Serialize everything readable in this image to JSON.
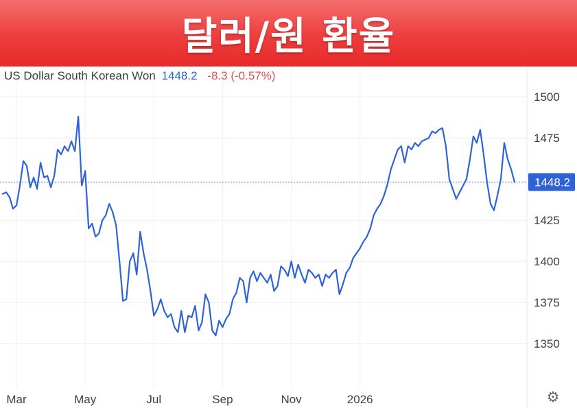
{
  "banner": {
    "title": "달러/원 환율"
  },
  "header": {
    "instrument": "US Dollar South Korean Won",
    "price": "1448.2",
    "change": "-8.3",
    "change_pct": "(-0.57%)"
  },
  "colors": {
    "line": "#2e62d6",
    "banner": "#ee3d3d",
    "negative": "#e05050",
    "price_tag": "#2e62d6"
  },
  "settings": {
    "icon": "gear-icon"
  },
  "chart_data": {
    "type": "line",
    "title": "",
    "xlabel": "",
    "ylabel": "",
    "ylim": [
      1323,
      1508
    ],
    "y_ticks": [
      1350,
      1375,
      1400,
      1425,
      1475,
      1500
    ],
    "x_ticks": [
      "Mar",
      "May",
      "Jul",
      "Sep",
      "Nov",
      "2026"
    ],
    "x_tick_index": [
      4,
      24,
      44,
      64,
      84,
      104
    ],
    "grid": true,
    "last_price_label": "1448.2",
    "last_value": 1448.2,
    "series": [
      {
        "values": [
          1441,
          1442,
          1439,
          1432,
          1434,
          1446,
          1461,
          1458,
          1445,
          1451,
          1444,
          1460,
          1451,
          1452,
          1445,
          1452,
          1468,
          1465,
          1470,
          1467,
          1473,
          1467,
          1488,
          1446,
          1455,
          1420,
          1423,
          1415,
          1417,
          1425,
          1428,
          1435,
          1430,
          1422,
          1400,
          1376,
          1377,
          1400,
          1405,
          1392,
          1418,
          1405,
          1395,
          1382,
          1367,
          1371,
          1377,
          1370,
          1366,
          1368,
          1360,
          1357,
          1370,
          1357,
          1367,
          1366,
          1373,
          1358,
          1363,
          1380,
          1375,
          1358,
          1355,
          1364,
          1360,
          1365,
          1368,
          1377,
          1381,
          1390,
          1388,
          1375,
          1390,
          1394,
          1388,
          1393,
          1390,
          1387,
          1392,
          1382,
          1385,
          1397,
          1395,
          1391,
          1400,
          1390,
          1398,
          1392,
          1387,
          1395,
          1393,
          1390,
          1392,
          1385,
          1392,
          1390,
          1393,
          1395,
          1380,
          1386,
          1393,
          1396,
          1402,
          1405,
          1408,
          1412,
          1415,
          1420,
          1428,
          1432,
          1435,
          1440,
          1447,
          1456,
          1462,
          1468,
          1470,
          1460,
          1470,
          1468,
          1472,
          1470,
          1473,
          1474,
          1475,
          1479,
          1478,
          1480,
          1481,
          1470,
          1450,
          1444,
          1438,
          1442,
          1446,
          1450,
          1462,
          1476,
          1472,
          1480,
          1465,
          1448,
          1435,
          1431,
          1440,
          1450,
          1472,
          1462,
          1456,
          1448.2
        ]
      }
    ]
  }
}
